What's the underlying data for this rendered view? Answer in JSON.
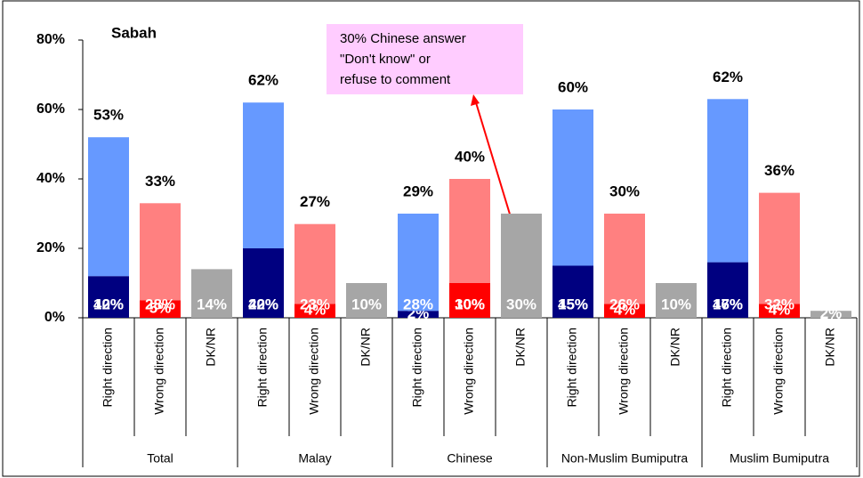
{
  "chart_data": {
    "type": "stacked_bar",
    "title": "Sabah",
    "groups": [
      {
        "name": "Total",
        "categories": [
          "Right direction",
          "Wrong direction",
          "DK/NR"
        ]
      },
      {
        "name": "Malay",
        "categories": [
          "Right direction",
          "Wrong direction",
          "DK/NR"
        ]
      },
      {
        "name": "Chinese",
        "categories": [
          "Right direction",
          "Wrong direction",
          "DK/NR"
        ]
      },
      {
        "name": "Non-Muslim Bumiputra",
        "categories": [
          "Right direction",
          "Wrong direction",
          "DK/NR"
        ]
      },
      {
        "name": "Muslim Bumiputra",
        "categories": [
          "Right direction",
          "Wrong direction",
          "DK/NR"
        ]
      }
    ],
    "series": [
      {
        "values": [
          12,
          5,
          14,
          20,
          4,
          10,
          2,
          10,
          30,
          15,
          4,
          10,
          16,
          4,
          2
        ],
        "value_labels": [
          "12%",
          "5%",
          "14%",
          "20%",
          "4%",
          "10%",
          "2%",
          "10%",
          "30%",
          "15%",
          "4%",
          "10%",
          "16%",
          "4%",
          "2%"
        ],
        "colors": [
          "#000080",
          "#ff0000",
          "#a6a6a6",
          "#000080",
          "#ff0000",
          "#a6a6a6",
          "#000080",
          "#ff0000",
          "#a6a6a6",
          "#000080",
          "#ff0000",
          "#a6a6a6",
          "#000080",
          "#ff0000",
          "#a6a6a6"
        ]
      },
      {
        "values": [
          40,
          28,
          null,
          42,
          23,
          null,
          28,
          30,
          null,
          45,
          26,
          null,
          47,
          32,
          null
        ],
        "value_labels": [
          "40%",
          "28%",
          null,
          "42%",
          "23%",
          null,
          "28%",
          "30%",
          null,
          "45%",
          "26%",
          null,
          "47%",
          "32%",
          null
        ],
        "colors": [
          "#6699ff",
          "#ff8080",
          null,
          "#6699ff",
          "#ff8080",
          null,
          "#6699ff",
          "#ff8080",
          null,
          "#6699ff",
          "#ff8080",
          null,
          "#6699ff",
          "#ff8080",
          null
        ]
      }
    ],
    "totals": {
      "values": [
        53,
        33,
        null,
        62,
        27,
        null,
        29,
        40,
        null,
        60,
        30,
        null,
        62,
        36,
        null
      ],
      "value_labels": [
        "53%",
        "33%",
        null,
        "62%",
        "27%",
        null,
        "29%",
        "40%",
        null,
        "60%",
        "30%",
        null,
        "62%",
        "36%",
        null
      ]
    },
    "annotation": [
      "30% Chinese answer",
      "\"Don't know\" or",
      "refuse to comment"
    ],
    "ylim": [
      0,
      80
    ],
    "yticks": [
      {
        "value": 0,
        "label": "0%"
      },
      {
        "value": 20,
        "label": "20%"
      },
      {
        "value": 40,
        "label": "40%"
      },
      {
        "value": 60,
        "label": "60%"
      },
      {
        "value": 80,
        "label": "80%"
      }
    ]
  }
}
